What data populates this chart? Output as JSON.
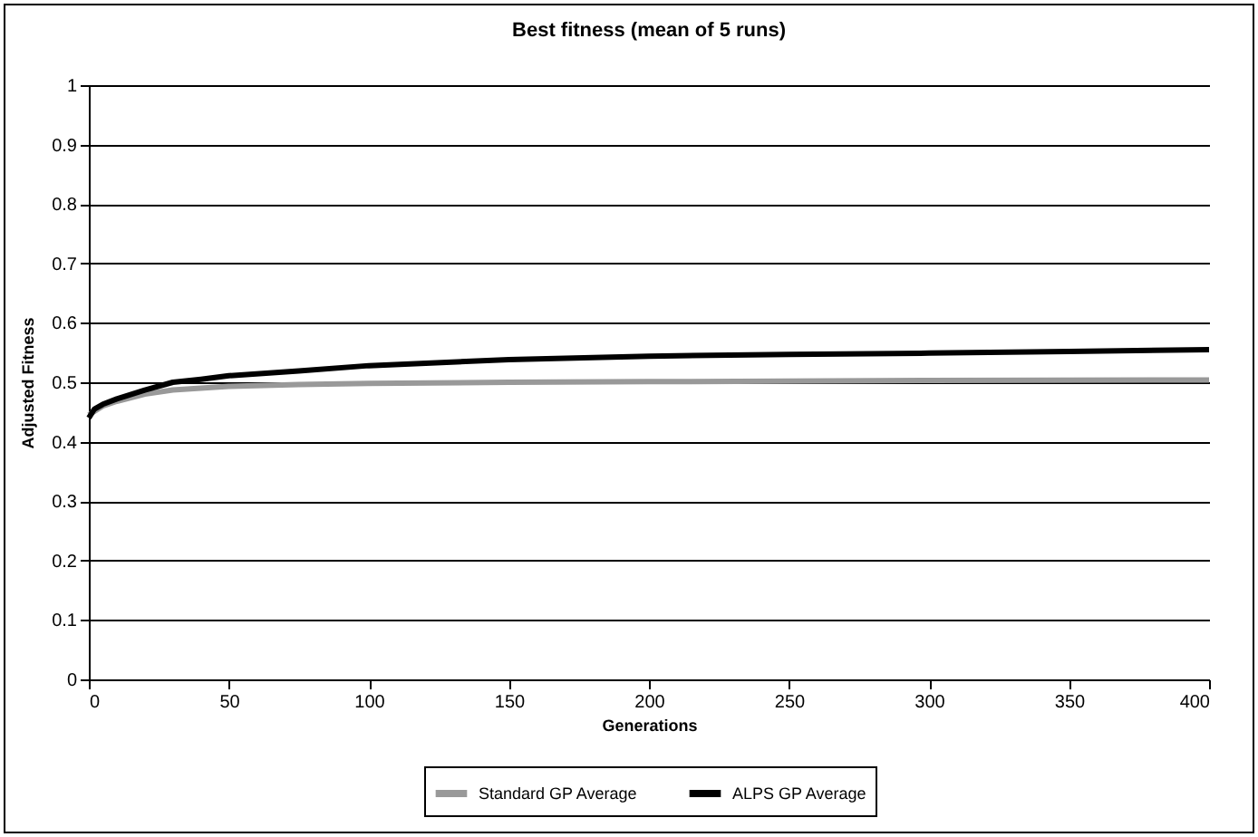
{
  "chart_data": {
    "type": "line",
    "title": "Best fitness (mean of 5 runs)",
    "xlabel": "Generations",
    "ylabel": "Adjusted Fitness",
    "xlim": [
      0,
      400
    ],
    "xticks": [
      0,
      50,
      100,
      150,
      200,
      250,
      300,
      350,
      400
    ],
    "ylim": [
      0,
      1
    ],
    "yticks": [
      0,
      0.1,
      0.2,
      0.3,
      0.4,
      0.5,
      0.6,
      0.7,
      0.8,
      0.9,
      1
    ],
    "grid": "y",
    "legend": "bottom",
    "marker": "none",
    "line_style": "solid",
    "series": [
      {
        "name": "Standard GP Average",
        "color": "#999999",
        "x": [
          0,
          5,
          10,
          20,
          30,
          50,
          75,
          100,
          150,
          200,
          300,
          400
        ],
        "values": [
          0.445,
          0.46,
          0.468,
          0.48,
          0.487,
          0.493,
          0.496,
          0.498,
          0.5,
          0.501,
          0.503,
          0.504
        ]
      },
      {
        "name": "ALPS GP Average",
        "color": "#000000",
        "x": [
          0,
          2,
          5,
          10,
          20,
          30,
          40,
          50,
          75,
          100,
          150,
          200,
          250,
          300,
          350,
          400
        ],
        "values": [
          0.44,
          0.455,
          0.463,
          0.472,
          0.487,
          0.5,
          0.505,
          0.511,
          0.519,
          0.528,
          0.538,
          0.544,
          0.547,
          0.549,
          0.552,
          0.555
        ]
      }
    ]
  }
}
